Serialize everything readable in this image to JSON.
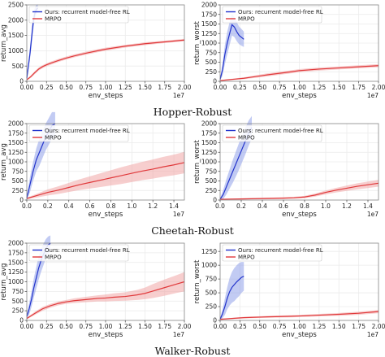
{
  "figure": {
    "captions": [
      "Hopper-Robust",
      "Cheetah-Robust",
      "Walker-Robust"
    ],
    "x_offset_text": "1e7"
  },
  "colors": {
    "ours": "#2233cc",
    "mrpo": "#e0393b",
    "ours_band": "#8fa0ea",
    "mrpo_band": "#f0a6a6",
    "grid": "#ebebeb",
    "spine": "#888888"
  },
  "chart_data": [
    {
      "id": "hopper-avg",
      "type": "line",
      "xlabel": "env_steps",
      "ylabel": "return_avg",
      "xlim": [
        0,
        2.0
      ],
      "ylim": [
        0,
        2500
      ],
      "xticks": [
        0.0,
        0.25,
        0.5,
        0.75,
        1.0,
        1.25,
        1.5,
        1.75,
        2.0
      ],
      "yticks": [
        0,
        500,
        1000,
        1500,
        2000,
        2500
      ],
      "xscale_label": "1e7",
      "legend": "top-left",
      "series": [
        {
          "name": "Ours: recurrent model-free RL",
          "key": "ours",
          "x": [
            0.0,
            0.02,
            0.04,
            0.06,
            0.08,
            0.1,
            0.12,
            0.14
          ],
          "y": [
            100,
            500,
            900,
            1400,
            1900,
            2200,
            2350,
            2400
          ],
          "spread": [
            40,
            120,
            200,
            250,
            250,
            200,
            150,
            120
          ]
        },
        {
          "name": "MRPO",
          "key": "mrpo",
          "x": [
            0.0,
            0.05,
            0.1,
            0.15,
            0.2,
            0.25,
            0.3,
            0.4,
            0.5,
            0.6,
            0.75,
            0.9,
            1.0,
            1.25,
            1.5,
            1.75,
            2.0
          ],
          "y": [
            50,
            150,
            280,
            400,
            480,
            540,
            590,
            680,
            760,
            830,
            920,
            1000,
            1050,
            1150,
            1230,
            1290,
            1350
          ],
          "spread": [
            20,
            40,
            50,
            50,
            50,
            50,
            50,
            50,
            50,
            50,
            50,
            50,
            50,
            45,
            45,
            40,
            40
          ]
        }
      ]
    },
    {
      "id": "hopper-worst",
      "type": "line",
      "xlabel": "env_steps",
      "ylabel": "return_worst",
      "xlim": [
        0,
        2.0
      ],
      "ylim": [
        0,
        2000
      ],
      "xticks": [
        0.0,
        0.25,
        0.5,
        0.75,
        1.0,
        1.25,
        1.5,
        1.75,
        2.0
      ],
      "yticks": [
        0,
        250,
        500,
        750,
        1000,
        1250,
        1500,
        1750,
        2000
      ],
      "xscale_label": "1e7",
      "legend": "top-left",
      "series": [
        {
          "name": "Ours: recurrent model-free RL",
          "key": "ours",
          "x": [
            0.0,
            0.03,
            0.06,
            0.09,
            0.12,
            0.15,
            0.18,
            0.21,
            0.24,
            0.27,
            0.3
          ],
          "y": [
            50,
            300,
            700,
            1000,
            1250,
            1480,
            1420,
            1300,
            1200,
            1150,
            1100
          ],
          "spread": [
            30,
            150,
            250,
            300,
            300,
            280,
            260,
            250,
            230,
            220,
            200
          ]
        },
        {
          "name": "MRPO",
          "key": "mrpo",
          "x": [
            0.0,
            0.1,
            0.2,
            0.3,
            0.4,
            0.5,
            0.6,
            0.75,
            0.9,
            1.0,
            1.25,
            1.5,
            1.75,
            2.0
          ],
          "y": [
            20,
            40,
            60,
            80,
            110,
            140,
            170,
            210,
            250,
            280,
            320,
            350,
            380,
            410
          ],
          "spread": [
            10,
            15,
            20,
            25,
            30,
            35,
            40,
            40,
            40,
            40,
            40,
            40,
            40,
            40
          ]
        }
      ]
    },
    {
      "id": "cheetah-avg",
      "type": "line",
      "xlabel": "env_steps",
      "ylabel": "return_avg",
      "xlim": [
        0,
        1.5
      ],
      "ylim": [
        0,
        2000
      ],
      "xticks": [
        0.0,
        0.2,
        0.4,
        0.6,
        0.8,
        1.0,
        1.2,
        1.4
      ],
      "yticks": [
        0,
        250,
        500,
        750,
        1000,
        1250,
        1500,
        1750,
        2000
      ],
      "xscale_label": "1e7",
      "legend": "top-left",
      "series": [
        {
          "name": "Ours: recurrent model-free RL",
          "key": "ours",
          "x": [
            0.0,
            0.03,
            0.06,
            0.09,
            0.12,
            0.15,
            0.18,
            0.21,
            0.24,
            0.27
          ],
          "y": [
            50,
            400,
            750,
            1050,
            1250,
            1450,
            1650,
            1800,
            1950,
            2000
          ],
          "spread": [
            30,
            200,
            250,
            300,
            350,
            350,
            350,
            350,
            350,
            300
          ]
        },
        {
          "name": "MRPO",
          "key": "mrpo",
          "x": [
            0.0,
            0.1,
            0.2,
            0.3,
            0.4,
            0.5,
            0.6,
            0.7,
            0.8,
            0.9,
            1.0,
            1.1,
            1.2,
            1.3,
            1.4,
            1.5
          ],
          "y": [
            40,
            120,
            200,
            260,
            330,
            400,
            460,
            520,
            580,
            640,
            700,
            760,
            810,
            870,
            920,
            980
          ],
          "spread": [
            20,
            50,
            80,
            100,
            120,
            140,
            160,
            180,
            200,
            220,
            230,
            240,
            250,
            260,
            270,
            280
          ]
        }
      ]
    },
    {
      "id": "cheetah-worst",
      "type": "line",
      "xlabel": "env_steps",
      "ylabel": "return_worst",
      "xlim": [
        0,
        1.5
      ],
      "ylim": [
        0,
        2000
      ],
      "xticks": [
        0.0,
        0.2,
        0.4,
        0.6,
        0.8,
        1.0,
        1.2,
        1.4
      ],
      "yticks": [
        0,
        250,
        500,
        750,
        1000,
        1250,
        1500,
        1750,
        2000
      ],
      "xscale_label": "1e7",
      "legend": "top-left",
      "series": [
        {
          "name": "Ours: recurrent model-free RL",
          "key": "ours",
          "x": [
            0.0,
            0.03,
            0.06,
            0.09,
            0.12,
            0.15,
            0.18,
            0.21,
            0.24,
            0.27,
            0.3
          ],
          "y": [
            20,
            150,
            350,
            550,
            750,
            950,
            1150,
            1350,
            1550,
            1750,
            1900
          ],
          "spread": [
            20,
            120,
            200,
            250,
            300,
            330,
            350,
            350,
            350,
            330,
            300
          ]
        },
        {
          "name": "MRPO",
          "key": "mrpo",
          "x": [
            0.0,
            0.1,
            0.2,
            0.3,
            0.4,
            0.5,
            0.6,
            0.7,
            0.8,
            0.9,
            1.0,
            1.1,
            1.2,
            1.3,
            1.4,
            1.5
          ],
          "y": [
            20,
            25,
            30,
            35,
            40,
            45,
            50,
            60,
            80,
            130,
            200,
            260,
            310,
            360,
            400,
            440
          ],
          "spread": [
            10,
            12,
            14,
            16,
            18,
            20,
            22,
            25,
            30,
            40,
            50,
            60,
            70,
            80,
            85,
            90
          ]
        }
      ]
    },
    {
      "id": "walker-avg",
      "type": "line",
      "xlabel": "env_steps",
      "ylabel": "return_avg",
      "xlim": [
        0,
        2.0
      ],
      "ylim": [
        0,
        2000
      ],
      "xticks": [
        0.0,
        0.25,
        0.5,
        0.75,
        1.0,
        1.25,
        1.5,
        1.75,
        2.0
      ],
      "yticks": [
        0,
        250,
        500,
        750,
        1000,
        1250,
        1500,
        1750,
        2000
      ],
      "xscale_label": "1e7",
      "legend": "top-left",
      "series": [
        {
          "name": "Ours: recurrent model-free RL",
          "key": "ours",
          "x": [
            0.0,
            0.03,
            0.06,
            0.09,
            0.12,
            0.15,
            0.18,
            0.21,
            0.24,
            0.27,
            0.3
          ],
          "y": [
            100,
            300,
            550,
            850,
            1100,
            1350,
            1550,
            1700,
            1850,
            1950,
            2000
          ],
          "spread": [
            50,
            150,
            200,
            250,
            280,
            300,
            300,
            280,
            250,
            220,
            200
          ]
        },
        {
          "name": "MRPO",
          "key": "mrpo",
          "x": [
            0.0,
            0.1,
            0.2,
            0.3,
            0.4,
            0.5,
            0.6,
            0.75,
            0.9,
            1.0,
            1.1,
            1.25,
            1.4,
            1.5,
            1.6,
            1.75,
            1.9,
            2.0
          ],
          "y": [
            50,
            180,
            300,
            380,
            440,
            480,
            510,
            540,
            570,
            580,
            600,
            620,
            660,
            700,
            760,
            850,
            940,
            1000
          ],
          "spread": [
            20,
            40,
            50,
            50,
            50,
            50,
            60,
            70,
            80,
            90,
            100,
            110,
            130,
            150,
            180,
            210,
            230,
            250
          ]
        }
      ]
    },
    {
      "id": "walker-worst",
      "type": "line",
      "xlabel": "env_steps",
      "ylabel": "return_worst",
      "xlim": [
        0,
        2.0
      ],
      "ylim": [
        0,
        1400
      ],
      "xticks": [
        0.0,
        0.25,
        0.5,
        0.75,
        1.0,
        1.25,
        1.5,
        1.75,
        2.0
      ],
      "yticks": [
        0,
        250,
        500,
        750,
        1000,
        1250
      ],
      "xscale_label": "1e7",
      "legend": "top-left",
      "series": [
        {
          "name": "Ours: recurrent model-free RL",
          "key": "ours",
          "x": [
            0.0,
            0.03,
            0.06,
            0.09,
            0.12,
            0.15,
            0.18,
            0.21,
            0.24,
            0.27,
            0.3
          ],
          "y": [
            20,
            120,
            250,
            400,
            520,
            600,
            650,
            700,
            740,
            780,
            800
          ],
          "spread": [
            20,
            80,
            150,
            200,
            250,
            280,
            300,
            300,
            300,
            280,
            260
          ]
        },
        {
          "name": "MRPO",
          "key": "mrpo",
          "x": [
            0.0,
            0.1,
            0.2,
            0.3,
            0.4,
            0.5,
            0.6,
            0.75,
            0.9,
            1.0,
            1.25,
            1.5,
            1.75,
            2.0
          ],
          "y": [
            20,
            30,
            40,
            50,
            55,
            60,
            65,
            70,
            75,
            80,
            95,
            110,
            130,
            160
          ],
          "spread": [
            10,
            10,
            12,
            14,
            15,
            16,
            17,
            18,
            19,
            20,
            22,
            25,
            28,
            30
          ]
        }
      ]
    }
  ]
}
